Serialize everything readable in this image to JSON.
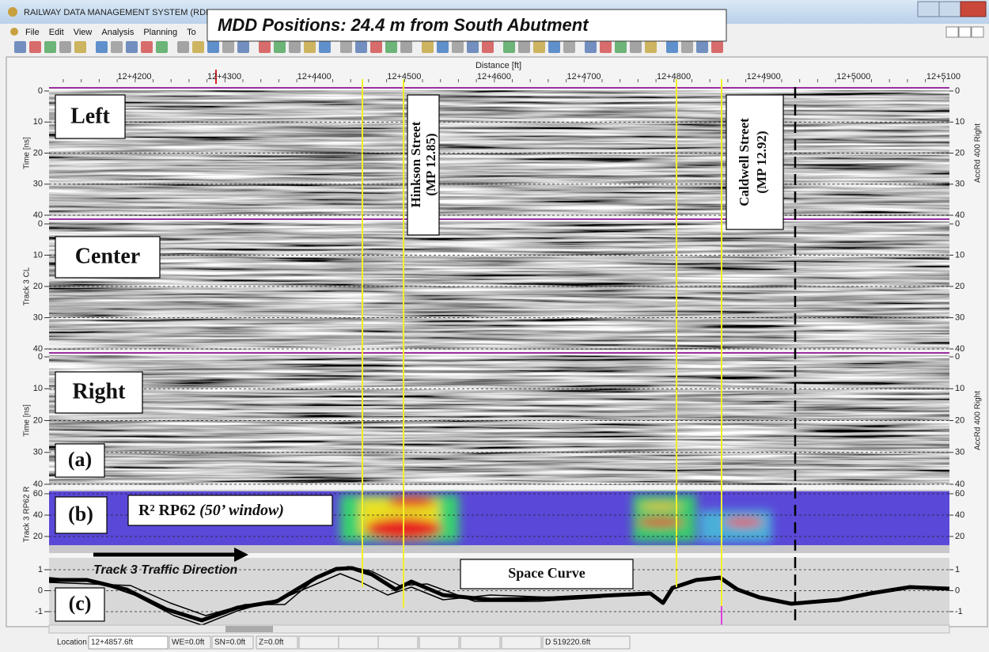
{
  "window": {
    "title": "RAILWAY DATA MANAGEMENT SYSTEM (RDM",
    "menu": [
      "File",
      "Edit",
      "View",
      "Analysis",
      "Planning",
      "To"
    ]
  },
  "callout": "MDD Positions: 24.4 m from South Abutment",
  "distance_axis": {
    "label": "Distance [ft]",
    "ticks": [
      "12+4200",
      "12+4300",
      "12+4400",
      "12+4500",
      "12+4600",
      "12+4700",
      "12+4800",
      "12+4900",
      "12+5000",
      "12+5100"
    ]
  },
  "gpr_panels": [
    {
      "label": "Left",
      "axis_label": "Time [ns]",
      "right_axis_label": "AccRd 400 Right",
      "yticks": [
        0,
        10,
        20,
        30,
        40
      ]
    },
    {
      "label": "Center",
      "axis_label": "Track 3 CL",
      "yticks": [
        0,
        10,
        20,
        30,
        40
      ]
    },
    {
      "label": "Right",
      "tag": "(a)",
      "axis_label": "Time [ns]",
      "right_axis_label": "AccRd 400 Right",
      "yticks": [
        0,
        10,
        20,
        30,
        40
      ]
    }
  ],
  "r2_panel": {
    "tag": "(b)",
    "axis_label": "Track 3 RP62 R",
    "title": "R² RP62",
    "title_note": "(50’ window)",
    "yticks": [
      20,
      40,
      60
    ]
  },
  "space_curve_panel": {
    "tag": "(c)",
    "title": "Space Curve",
    "direction_label": "Track 3 Traffic Direction",
    "yticks": [
      -1,
      0,
      1
    ]
  },
  "streets": [
    {
      "name": "Hinkson Street",
      "mp": "(MP 12.85)"
    },
    {
      "name": "Caldwell Street",
      "mp": "(MP 12.92)"
    }
  ],
  "status_bar": {
    "location_label": "Location",
    "location": "12+4857.6ft",
    "we": "WE=0.0ft",
    "sn": "SN=0.0ft",
    "z": "Z=0.0ft",
    "d": "D 519220.6ft"
  }
}
